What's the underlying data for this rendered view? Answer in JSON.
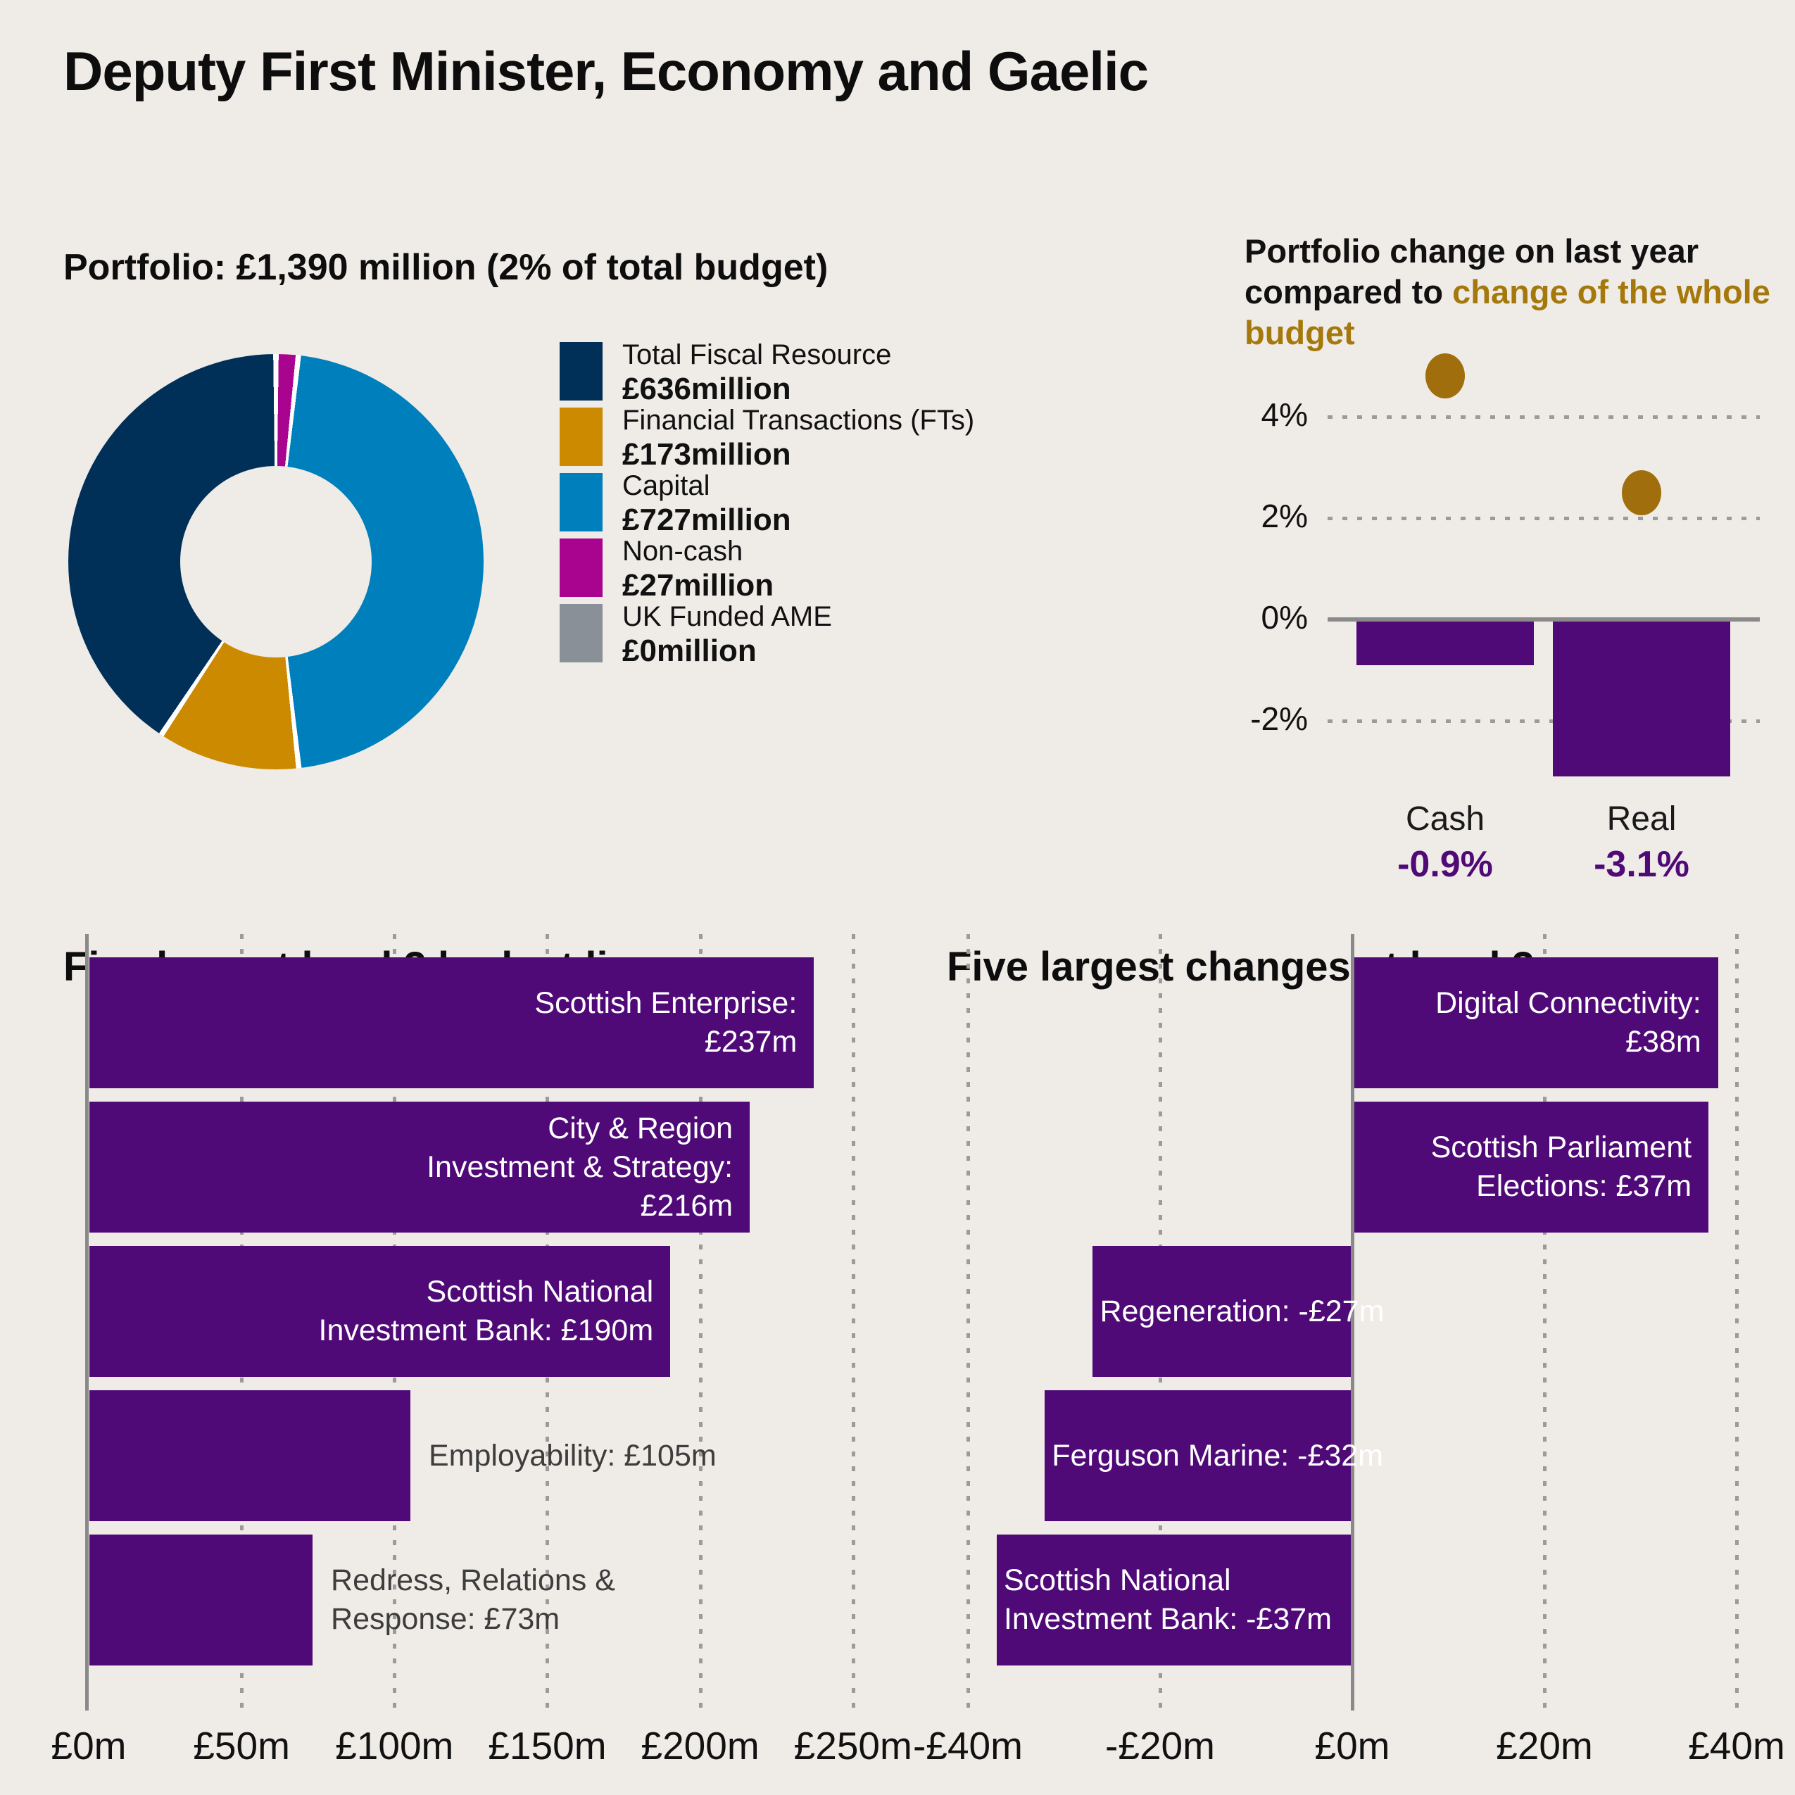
{
  "header": {
    "title": "Deputy First Minister, Economy and Gaelic"
  },
  "colors": {
    "background": "#EFEBE7",
    "navy": "#003057",
    "gold": "#CC8A00",
    "blue": "#007FBD",
    "magenta": "#A8048F",
    "gray": "#899097",
    "purple": "#4F0A78",
    "gold_dot": "#A06E0D",
    "gold_text": "#A5780C",
    "axis": "#8A8A8A",
    "grid": "#9B9B9B",
    "text_dark": "#111111",
    "text_gray": "#3D3D3D",
    "white": "#FFFFFF"
  },
  "portfolio_section": {
    "subtitle": "Portfolio: £1,390 million (2% of total budget)",
    "legend": [
      {
        "label": "Total Fiscal Resource",
        "value": "£636million",
        "color_key": "navy"
      },
      {
        "label": "Financial Transactions (FTs)",
        "value": "£173million",
        "color_key": "gold"
      },
      {
        "label": "Capital",
        "value": "£727million",
        "color_key": "blue"
      },
      {
        "label": "Non-cash",
        "value": "£27million",
        "color_key": "magenta"
      },
      {
        "label": "UK Funded AME",
        "value": "£0million",
        "color_key": "gray"
      }
    ]
  },
  "change_section": {
    "title_parts": [
      {
        "text": "Portfolio change on last year compared to ",
        "color_key": "text_dark"
      },
      {
        "text": "change of the whole budget",
        "color_key": "gold_text"
      }
    ],
    "yticks": [
      {
        "label": "4%",
        "value": 4
      },
      {
        "label": "2%",
        "value": 2
      },
      {
        "label": "0%",
        "value": 0
      },
      {
        "label": "-2%",
        "value": -2
      }
    ],
    "bars": [
      {
        "category": "Cash",
        "value": -0.9,
        "value_label": "-0.9%"
      },
      {
        "category": "Real",
        "value": -3.1,
        "value_label": "-3.1%"
      }
    ],
    "dots": [
      {
        "value": 4.8
      },
      {
        "value": 2.5
      }
    ]
  },
  "largest_lines": {
    "title": "Five largest level 3 budget lines",
    "bars": [
      {
        "lines": [
          "Scottish Enterprise:",
          "£237m"
        ],
        "value": 237,
        "label_pos": "inside-right"
      },
      {
        "lines": [
          "City & Region",
          "Investment & Strategy:",
          "£216m"
        ],
        "value": 216,
        "label_pos": "inside-right"
      },
      {
        "lines": [
          "Scottish National",
          "Investment Bank: £190m"
        ],
        "value": 190,
        "label_pos": "inside-right"
      },
      {
        "lines": [
          "Employability: £105m"
        ],
        "value": 105,
        "label_pos": "outside-right"
      },
      {
        "lines": [
          "Redress, Relations &",
          "Response: £73m"
        ],
        "value": 73,
        "label_pos": "outside-right"
      }
    ],
    "xticks": [
      {
        "label": "£0m",
        "value": 0
      },
      {
        "label": "£50m",
        "value": 50
      },
      {
        "label": "£100m",
        "value": 100
      },
      {
        "label": "£150m",
        "value": 150
      },
      {
        "label": "£200m",
        "value": 200
      },
      {
        "label": "£250m",
        "value": 250
      }
    ]
  },
  "largest_changes": {
    "title": "Five largest changes at level 3",
    "bars": [
      {
        "lines": [
          "Digital Connectivity:",
          "£38m"
        ],
        "value": 38,
        "label_pos": "inside-right"
      },
      {
        "lines": [
          "Scottish Parliament",
          "Elections: £37m"
        ],
        "value": 37,
        "label_pos": "inside-right"
      },
      {
        "lines": [
          "Regeneration: -£27m"
        ],
        "value": -27,
        "label_pos": "inside-left"
      },
      {
        "lines": [
          "Ferguson Marine: -£32m"
        ],
        "value": -32,
        "label_pos": "inside-left"
      },
      {
        "lines": [
          "Scottish National",
          "Investment Bank: -£37m"
        ],
        "value": -37,
        "label_pos": "inside-left"
      }
    ],
    "xticks": [
      {
        "label": "-£40m",
        "value": -40
      },
      {
        "label": "-£20m",
        "value": -20
      },
      {
        "label": "£0m",
        "value": 0
      },
      {
        "label": "£20m",
        "value": 20
      },
      {
        "label": "£40m",
        "value": 40
      }
    ]
  },
  "chart_data": [
    {
      "type": "pie",
      "subtype": "donut",
      "title": "Portfolio: £1,390 million (2% of total budget)",
      "labels": [
        "Total Fiscal Resource",
        "Financial Transactions (FTs)",
        "Capital",
        "Non-cash",
        "UK Funded AME"
      ],
      "values": [
        636,
        173,
        727,
        27,
        0
      ],
      "value_labels": [
        "£636million",
        "£173million",
        "£727million",
        "£27million",
        "£0million"
      ],
      "colors": [
        "#003057",
        "#CC8A00",
        "#007FBD",
        "#A8048F",
        "#899097"
      ],
      "draw_order_clockwise_from_top": [
        "Non-cash",
        "Capital",
        "Financial Transactions (FTs)",
        "Total Fiscal Resource"
      ],
      "legend_position": "right"
    },
    {
      "type": "bar",
      "title": "Portfolio change on last year compared to change of the whole budget",
      "categories": [
        "Cash",
        "Real"
      ],
      "series": [
        {
          "name": "Portfolio change",
          "values": [
            -0.9,
            -3.1
          ]
        },
        {
          "name": "Whole budget change (gold dots, estimated)",
          "values": [
            4.8,
            2.5
          ]
        }
      ],
      "value_labels": [
        "-0.9%",
        "-3.1%"
      ],
      "ylabel": "%",
      "yticks": [
        4,
        2,
        0,
        -2
      ],
      "ylim": [
        -3.5,
        5.2
      ],
      "grid": "dotted-horizontal"
    },
    {
      "type": "bar",
      "orientation": "horizontal",
      "title": "Five largest level 3 budget lines",
      "categories": [
        "Scottish Enterprise",
        "City & Region Investment & Strategy",
        "Scottish National Investment Bank",
        "Employability",
        "Redress, Relations & Response"
      ],
      "values": [
        237,
        216,
        190,
        105,
        73
      ],
      "xlabel": "£m",
      "xlim": [
        0,
        259
      ],
      "xticks": [
        0,
        50,
        100,
        150,
        200,
        250
      ],
      "grid": "dotted-vertical"
    },
    {
      "type": "bar",
      "orientation": "horizontal",
      "title": "Five largest changes at level 3",
      "categories": [
        "Digital Connectivity",
        "Scottish Parliament Elections",
        "Regeneration",
        "Ferguson Marine",
        "Scottish National Investment Bank"
      ],
      "values": [
        38,
        37,
        -27,
        -32,
        -37
      ],
      "xlabel": "£m",
      "xlim": [
        -44,
        46
      ],
      "xticks": [
        -40,
        -20,
        0,
        20,
        40
      ],
      "grid": "dotted-vertical"
    }
  ]
}
